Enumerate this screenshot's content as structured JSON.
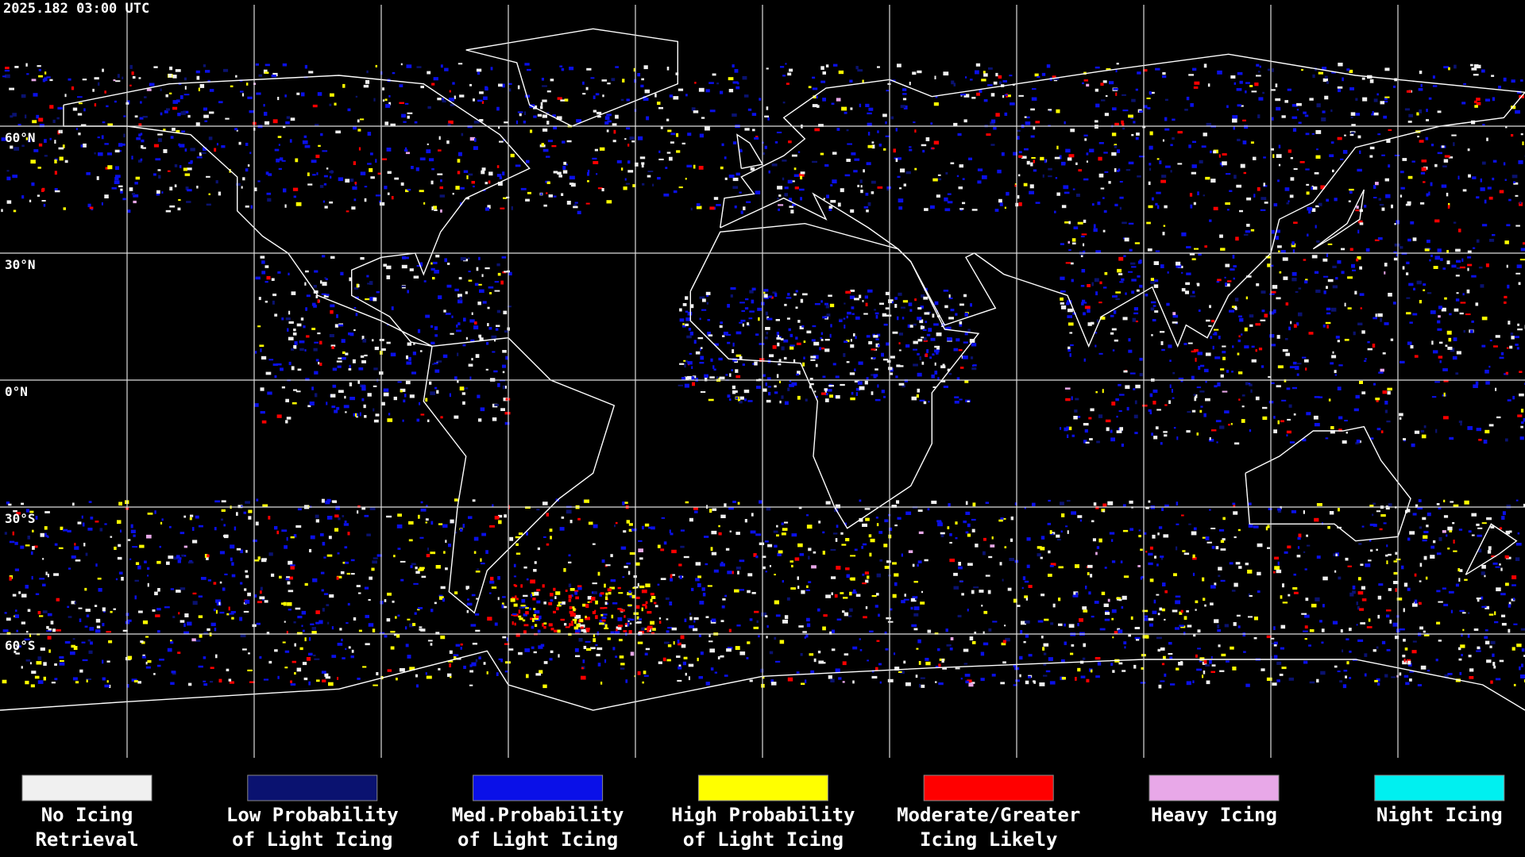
{
  "header": {
    "timestamp": "2025.182 03:00 UTC"
  },
  "map": {
    "latitude_labels": [
      "60°N",
      "30°N",
      "0°N",
      "30°S",
      "60°S"
    ]
  },
  "legend": {
    "items": [
      {
        "lines": [
          "No Icing",
          "Retrieval"
        ],
        "color": "#f0f0f0"
      },
      {
        "lines": [
          "Low Probability",
          "of Light Icing"
        ],
        "color": "#0a1270"
      },
      {
        "lines": [
          "Med.Probability",
          "of Light Icing"
        ],
        "color": "#0a10e8"
      },
      {
        "lines": [
          "High Probability",
          "of Light Icing"
        ],
        "color": "#ffff00"
      },
      {
        "lines": [
          "Moderate/Greater",
          "Icing Likely"
        ],
        "color": "#ff0000"
      },
      {
        "lines": [
          "Heavy Icing"
        ],
        "color": "#e8a8e8"
      },
      {
        "lines": [
          "Night Icing"
        ],
        "color": "#00f0f0"
      }
    ]
  }
}
